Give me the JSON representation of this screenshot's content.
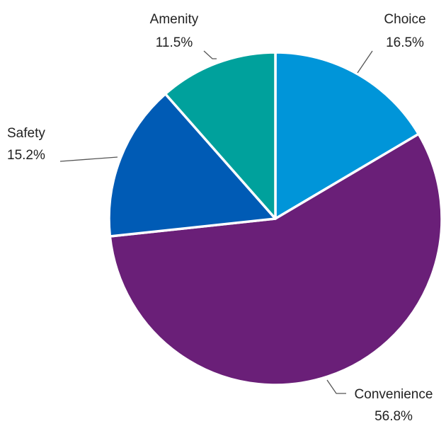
{
  "chart_data": {
    "type": "pie",
    "slices": [
      {
        "label": "Choice",
        "value": 16.5,
        "value_label": "16.5%",
        "color": "#0095D9"
      },
      {
        "label": "Convenience",
        "value": 56.8,
        "value_label": "56.8%",
        "color": "#6A1F78"
      },
      {
        "label": "Safety",
        "value": 15.2,
        "value_label": "15.2%",
        "color": "#005BB5"
      },
      {
        "label": "Amenity",
        "value": 11.5,
        "value_label": "11.5%",
        "color": "#00A19C"
      }
    ],
    "start_angle": "12 o'clock",
    "direction": "clockwise",
    "legend": "none (labels beside slices with leader lines)"
  }
}
